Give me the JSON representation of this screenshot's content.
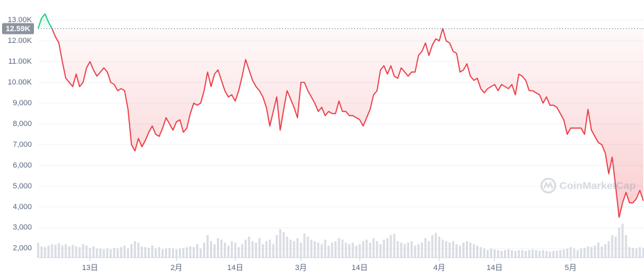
{
  "chart_data": {
    "type": "line",
    "categories": [
      null,
      null,
      null,
      null,
      null,
      null,
      null,
      null,
      null,
      null,
      null,
      null,
      null,
      null,
      null,
      "13日",
      null,
      null,
      null,
      null,
      null,
      null,
      null,
      null,
      null,
      null,
      null,
      null,
      null,
      null,
      null,
      null,
      null,
      null,
      null,
      null,
      null,
      null,
      null,
      null,
      "2月",
      null,
      null,
      null,
      null,
      null,
      null,
      null,
      null,
      null,
      null,
      null,
      null,
      null,
      null,
      null,
      null,
      "14日",
      null,
      null,
      null,
      null,
      null,
      null,
      null,
      null,
      null,
      null,
      null,
      null,
      null,
      null,
      null,
      null,
      null,
      null,
      "3月",
      null,
      null,
      null,
      null,
      null,
      null,
      null,
      null,
      null,
      null,
      null,
      null,
      null,
      null,
      null,
      null,
      "14日",
      null,
      null,
      null,
      null,
      null,
      null,
      null,
      null,
      null,
      null,
      null,
      null,
      null,
      null,
      null,
      null,
      null,
      null,
      null,
      null,
      null,
      null,
      "4月",
      null,
      null,
      null,
      null,
      null,
      null,
      null,
      null,
      null,
      null,
      null,
      null,
      null,
      null,
      null,
      "14日",
      null,
      null,
      null,
      null,
      null,
      null,
      null,
      null,
      null,
      null,
      null,
      null,
      null,
      null,
      null,
      null,
      null,
      null,
      null,
      null,
      null,
      "5月",
      null,
      null,
      null,
      null,
      null,
      null,
      null,
      null,
      null,
      null,
      null,
      null,
      null,
      null,
      null,
      null,
      null,
      null,
      null,
      null,
      null
    ],
    "values": [
      12600,
      13100,
      13300,
      12900,
      12600,
      12200,
      11900,
      11000,
      10200,
      10000,
      9800,
      10400,
      9800,
      10000,
      10700,
      11000,
      10600,
      10300,
      10500,
      10700,
      10500,
      10000,
      9900,
      9600,
      9700,
      9600,
      8700,
      7000,
      6700,
      7300,
      6900,
      7200,
      7600,
      7900,
      7500,
      7400,
      7800,
      8300,
      8000,
      7700,
      8100,
      8200,
      7600,
      7800,
      8500,
      9000,
      8900,
      9000,
      9600,
      10500,
      9800,
      10400,
      10600,
      10100,
      9600,
      9300,
      9400,
      9100,
      9600,
      10300,
      11100,
      10600,
      10100,
      9800,
      9600,
      9300,
      8800,
      7900,
      8600,
      9300,
      7700,
      8700,
      9600,
      9200,
      8800,
      8300,
      10000,
      10000,
      9600,
      9300,
      9000,
      8600,
      8800,
      8400,
      8600,
      8500,
      8500,
      9100,
      8600,
      8600,
      8400,
      8400,
      8300,
      8200,
      7900,
      8300,
      8700,
      9400,
      9600,
      10600,
      10800,
      10400,
      10800,
      10300,
      10200,
      10700,
      10500,
      10300,
      10500,
      10500,
      11300,
      11500,
      11900,
      11300,
      11800,
      12100,
      12000,
      12600,
      12000,
      11900,
      11500,
      11400,
      10500,
      10600,
      10900,
      10300,
      10100,
      10200,
      9700,
      9500,
      9700,
      9800,
      9900,
      9600,
      9900,
      9800,
      9700,
      9900,
      9400,
      10400,
      10300,
      10100,
      9600,
      9600,
      9500,
      9400,
      9000,
      9300,
      8900,
      8900,
      8800,
      8500,
      8200,
      7500,
      7800,
      7800,
      7800,
      7800,
      7500,
      8700,
      7700,
      7400,
      7100,
      7000,
      6600,
      5600,
      6400,
      5000,
      3500,
      4200,
      4700,
      4200,
      4200,
      4400,
      4800,
      4300
    ],
    "color": "#ea3943",
    "color_above": "#16c784",
    "baseline": {
      "value": 12590,
      "label": "12.59K"
    },
    "volume": {
      "axis": "y2",
      "color": "#d9dce3",
      "values": [
        20,
        15,
        14,
        16,
        18,
        17,
        19,
        16,
        18,
        15,
        17,
        15,
        14,
        18,
        16,
        13,
        15,
        12,
        12,
        11,
        12,
        11,
        13,
        12,
        14,
        16,
        12,
        18,
        22,
        20,
        15,
        14,
        13,
        16,
        12,
        14,
        11,
        12,
        13,
        12,
        11,
        12,
        13,
        14,
        15,
        14,
        18,
        12,
        20,
        30,
        22,
        18,
        26,
        24,
        20,
        16,
        22,
        20,
        14,
        18,
        24,
        28,
        22,
        20,
        26,
        18,
        22,
        24,
        18,
        30,
        38,
        34,
        28,
        24,
        22,
        26,
        20,
        32,
        28,
        24,
        22,
        20,
        18,
        24,
        16,
        20,
        22,
        26,
        24,
        20,
        18,
        20,
        16,
        18,
        22,
        24,
        20,
        26,
        22,
        18,
        24,
        26,
        30,
        32,
        22,
        20,
        18,
        20,
        22,
        16,
        18,
        20,
        26,
        22,
        30,
        33,
        28,
        24,
        22,
        20,
        22,
        18,
        16,
        20,
        22,
        20,
        18,
        16,
        14,
        12,
        10,
        12,
        11,
        10,
        9,
        10,
        11,
        10,
        9,
        10,
        10,
        9,
        10,
        11,
        10,
        9,
        10,
        9,
        8,
        9,
        9,
        10,
        11,
        12,
        14,
        12,
        10,
        12,
        13,
        15,
        14,
        16,
        20,
        15,
        18,
        22,
        30,
        28,
        40,
        45,
        30,
        14,
        13,
        12,
        14,
        13
      ]
    },
    "ylim": [
      1560,
      13970
    ],
    "yticks": [
      {
        "value": 2000,
        "label": "2,000"
      },
      {
        "value": 3000,
        "label": "3,000"
      },
      {
        "value": 4000,
        "label": "4,000"
      },
      {
        "value": 5000,
        "label": "5,000"
      },
      {
        "value": 6000,
        "label": "6,000"
      },
      {
        "value": 7000,
        "label": "7,000"
      },
      {
        "value": 8000,
        "label": "8,000"
      },
      {
        "value": 9000,
        "label": "9,000"
      },
      {
        "value": 10000,
        "label": "10.00K"
      },
      {
        "value": 11000,
        "label": "11.00K"
      },
      {
        "value": 12000,
        "label": "12.00K"
      },
      {
        "value": 13000,
        "label": "13.00K"
      }
    ],
    "y2lim": [
      0,
      60
    ],
    "grid": true,
    "watermark": "CoinMarketCap"
  }
}
